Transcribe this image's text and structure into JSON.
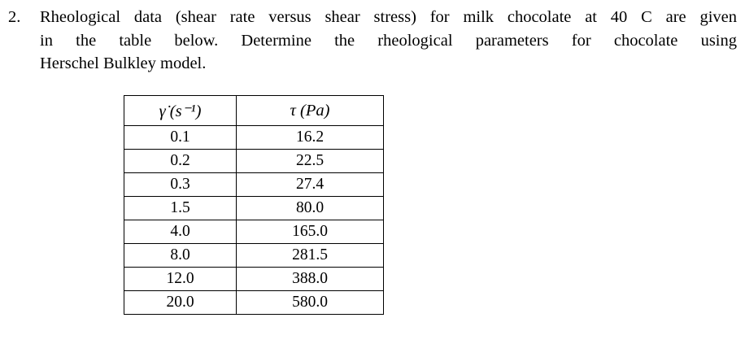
{
  "problem": {
    "number": "2.",
    "lines": [
      "Rheological data (shear rate versus shear stress) for milk chocolate at 40 C are given",
      "in the table below. Determine the rheological parameters for chocolate using",
      "Herschel Bulkley model."
    ]
  },
  "table": {
    "headers": [
      "γ̇ (s⁻¹)",
      "τ (Pa)"
    ],
    "rows": [
      [
        "0.1",
        "16.2"
      ],
      [
        "0.2",
        "22.5"
      ],
      [
        "0.3",
        "27.4"
      ],
      [
        "1.5",
        "80.0"
      ],
      [
        "4.0",
        "165.0"
      ],
      [
        "8.0",
        "281.5"
      ],
      [
        "12.0",
        "388.0"
      ],
      [
        "20.0",
        "580.0"
      ]
    ]
  }
}
